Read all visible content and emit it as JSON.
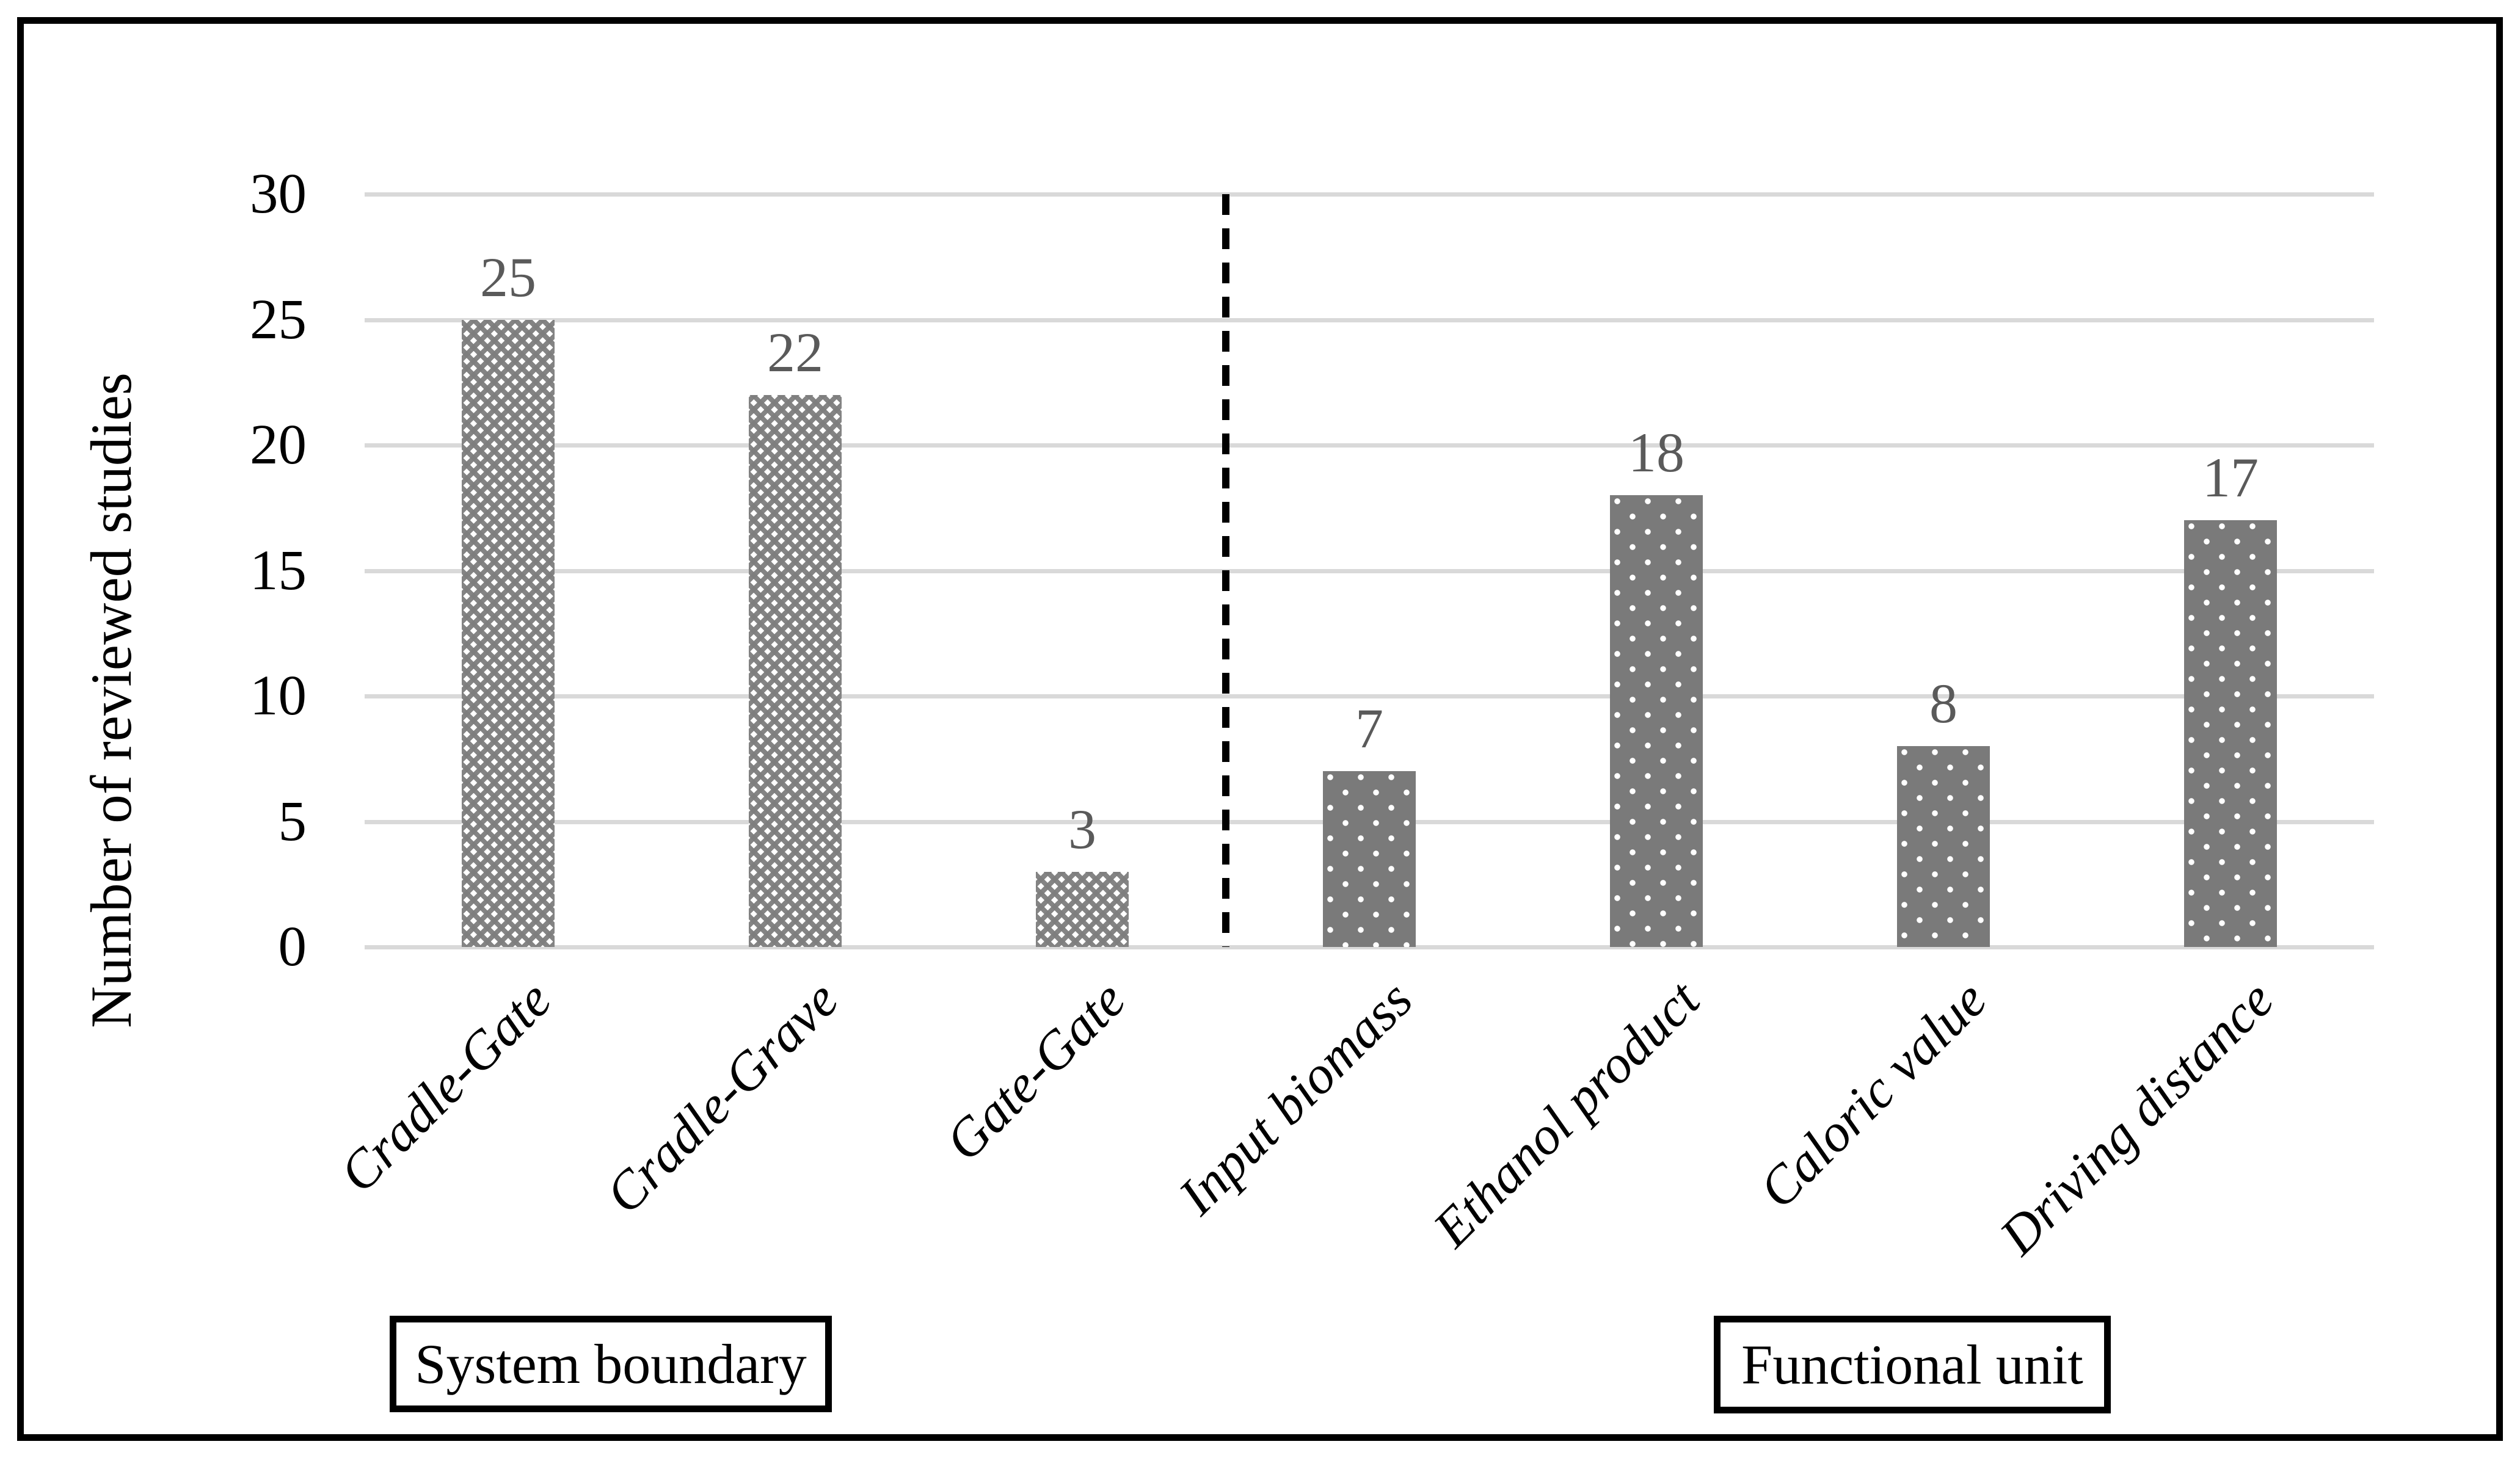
{
  "chart_data": {
    "type": "bar",
    "title": "",
    "xlabel": "",
    "ylabel": "Number of reviewed studies",
    "ylim": [
      0,
      30
    ],
    "yticks": [
      0,
      5,
      10,
      15,
      20,
      25,
      30
    ],
    "grid": true,
    "legend_position": "none",
    "categories": [
      "Cradle-Gate",
      "Cradle-Grave",
      "Gate-Gate",
      "Input biomass",
      "Ethanol product",
      "Caloric value",
      "Driving distance"
    ],
    "values": [
      25,
      22,
      3,
      7,
      18,
      8,
      17
    ],
    "data_labels": [
      "25",
      "22",
      "3",
      "7",
      "18",
      "8",
      "17"
    ],
    "series": [
      {
        "name": "System boundary",
        "categories": [
          "Cradle-Gate",
          "Cradle-Grave",
          "Gate-Gate"
        ],
        "values": [
          25,
          22,
          3
        ],
        "pattern": "diagonal-checker"
      },
      {
        "name": "Functional unit",
        "categories": [
          "Input biomass",
          "Ethanol product",
          "Caloric value",
          "Driving distance"
        ],
        "values": [
          7,
          18,
          8,
          17
        ],
        "pattern": "white-dots-on-gray"
      }
    ],
    "groups": [
      {
        "label": "System boundary"
      },
      {
        "label": "Functional unit"
      }
    ],
    "divider": {
      "style": "dashed-vertical-line",
      "between": [
        "Gate-Gate",
        "Input biomass"
      ]
    }
  },
  "colors": {
    "grid": "#d9d9d9",
    "data_label": "#5a5a5a",
    "checker_pattern_gray": "#7d7d7d",
    "dot_bar_gray": "#7a7a7a",
    "dot_color": "#ffffff",
    "frame": "#000000",
    "text": "#000000"
  }
}
